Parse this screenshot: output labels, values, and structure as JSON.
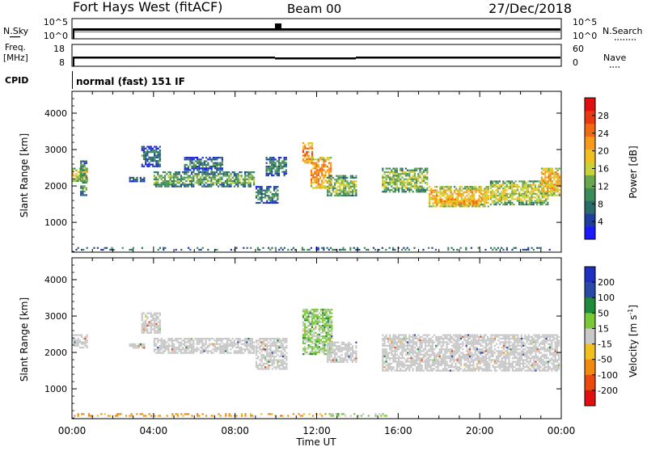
{
  "header": {
    "station": "Fort Hays West (fitACF)",
    "beam": "Beam 00",
    "date": "27/Dec/2018"
  },
  "top_panels": {
    "nsky_label": "N.Sky",
    "nsky_ticks": [
      "10^5",
      "10^0"
    ],
    "nsearch_label": "N.Search",
    "nsearch_ticks": [
      "10^5",
      "10^0"
    ],
    "freq_label_1": "Freq.",
    "freq_label_2": "[MHz]",
    "freq_ticks": [
      "18",
      "8"
    ],
    "nave_label": "Nave",
    "nave_ticks": [
      "60",
      "0"
    ],
    "cpid_label": "CPID",
    "cpid_value": "normal (fast) 151 IF"
  },
  "x_axis": {
    "tick_labels": [
      "00:00",
      "04:00",
      "08:00",
      "12:00",
      "16:00",
      "20:00",
      "00:00"
    ],
    "title": "Time UT"
  },
  "colors": {
    "power": [
      "#1a1aff",
      "#1f3f9f",
      "#2a6a6a",
      "#3c8a5a",
      "#6aa84f",
      "#c8d23a",
      "#f0c020",
      "#f59a1a",
      "#f06a14",
      "#e83a10",
      "#e01010"
    ],
    "velocity_gray": "#c8c8c8"
  },
  "chart_data": [
    {
      "type": "heatmap",
      "panel": "power",
      "ylabel": "Slant Range [km]",
      "yticks": [
        1000,
        2000,
        3000,
        4000
      ],
      "ylim": [
        180,
        4600
      ],
      "xlim_hours": [
        0,
        24
      ],
      "colorbar": {
        "label": "Power [dB]",
        "ticks": [
          "4",
          "8",
          "12",
          "16",
          "20",
          "24",
          "28"
        ],
        "range": [
          0,
          32
        ]
      },
      "echo_regions": [
        {
          "t0": 0.0,
          "t1": 0.8,
          "r_low": 2100,
          "r_high": 2500,
          "power": 18
        },
        {
          "t0": 0.4,
          "t1": 0.8,
          "r_low": 1700,
          "r_high": 2700,
          "power": 10
        },
        {
          "t0": 2.8,
          "t1": 3.6,
          "r_low": 2100,
          "r_high": 2250,
          "power": 10
        },
        {
          "t0": 3.4,
          "t1": 4.4,
          "r_low": 2500,
          "r_high": 3100,
          "power": 7
        },
        {
          "t0": 4.0,
          "t1": 9.0,
          "r_low": 1950,
          "r_high": 2400,
          "power": 12
        },
        {
          "t0": 5.5,
          "t1": 7.5,
          "r_low": 2400,
          "r_high": 2800,
          "power": 8
        },
        {
          "t0": 9.0,
          "t1": 10.2,
          "r_low": 1500,
          "r_high": 2000,
          "power": 9
        },
        {
          "t0": 9.5,
          "t1": 10.6,
          "r_low": 2250,
          "r_high": 2800,
          "power": 8
        },
        {
          "t0": 11.3,
          "t1": 11.9,
          "r_low": 2600,
          "r_high": 3200,
          "power": 24
        },
        {
          "t0": 11.7,
          "t1": 12.8,
          "r_low": 1900,
          "r_high": 2800,
          "power": 22
        },
        {
          "t0": 12.5,
          "t1": 14.0,
          "r_low": 1700,
          "r_high": 2300,
          "power": 14
        },
        {
          "t0": 15.2,
          "t1": 17.5,
          "r_low": 1800,
          "r_high": 2500,
          "power": 14
        },
        {
          "t0": 17.5,
          "t1": 20.5,
          "r_low": 1400,
          "r_high": 2000,
          "power": 20
        },
        {
          "t0": 17.8,
          "t1": 20.2,
          "r_low": 1450,
          "r_high": 1650,
          "power": 27
        },
        {
          "t0": 20.5,
          "t1": 23.4,
          "r_low": 1450,
          "r_high": 2150,
          "power": 16
        },
        {
          "t0": 23.0,
          "t1": 24.0,
          "r_low": 1700,
          "r_high": 2500,
          "power": 20
        },
        {
          "t0": 0.0,
          "t1": 24.0,
          "r_low": 190,
          "r_high": 320,
          "power": 6
        }
      ]
    },
    {
      "type": "heatmap",
      "panel": "velocity",
      "ylabel": "Slant Range [km]",
      "yticks": [
        1000,
        2000,
        3000,
        4000
      ],
      "ylim": [
        180,
        4600
      ],
      "xlim_hours": [
        0,
        24
      ],
      "colorbar": {
        "label_main": "Velocity",
        "label_units": "[m s",
        "label_sup": "-1",
        "label_close": "]",
        "ticks": [
          "200",
          "100",
          "50",
          "15",
          "-15",
          "-50",
          "-100",
          "-200"
        ],
        "bands": [
          "#1f2fbf",
          "#2a4aa8",
          "#1e8a3a",
          "#7ac83a",
          "#c8c8c8",
          "#f0c020",
          "#f08a10",
          "#e84a10",
          "#e01010"
        ]
      },
      "echo_regions": [
        {
          "t0": 0.0,
          "t1": 0.8,
          "r_low": 2100,
          "r_high": 2500,
          "velocity": 0
        },
        {
          "t0": 2.8,
          "t1": 3.6,
          "r_low": 2100,
          "r_high": 2250,
          "velocity": 0
        },
        {
          "t0": 3.4,
          "t1": 4.4,
          "r_low": 2500,
          "r_high": 3100,
          "velocity": 0
        },
        {
          "t0": 4.0,
          "t1": 9.0,
          "r_low": 1950,
          "r_high": 2400,
          "velocity": 0
        },
        {
          "t0": 9.0,
          "t1": 10.6,
          "r_low": 1500,
          "r_high": 2400,
          "velocity": 0
        },
        {
          "t0": 11.3,
          "t1": 12.8,
          "r_low": 1900,
          "r_high": 3200,
          "velocity": 20
        },
        {
          "t0": 12.5,
          "t1": 14.0,
          "r_low": 1700,
          "r_high": 2300,
          "velocity": 0
        },
        {
          "t0": 15.2,
          "t1": 24.0,
          "r_low": 1450,
          "r_high": 2500,
          "velocity": 0
        },
        {
          "t0": 0.0,
          "t1": 12.5,
          "r_low": 190,
          "r_high": 330,
          "velocity": -40
        },
        {
          "t0": 12.5,
          "t1": 15.5,
          "r_low": 190,
          "r_high": 330,
          "velocity": 20
        }
      ]
    }
  ]
}
